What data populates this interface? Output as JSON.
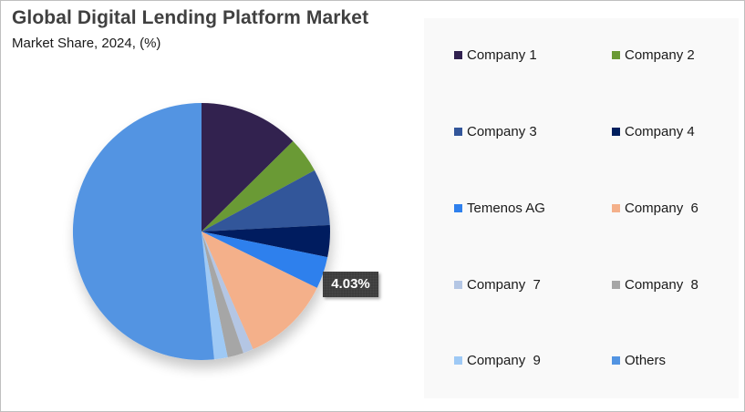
{
  "title": "Global Digital Lending Platform  Market",
  "subtitle": "Market Share, 2024, (%)",
  "tooltip": {
    "label": "4.03%",
    "target": "Temenos AG"
  },
  "legend": {
    "items": [
      {
        "label": "Company 1",
        "color": "#30214f"
      },
      {
        "label": "Company 2",
        "color": "#6a9a35"
      },
      {
        "label": "Company 3",
        "color": "#33569a"
      },
      {
        "label": "Company 4",
        "color": "#001f5e"
      },
      {
        "label": "Temenos AG",
        "color": "#2f80ed"
      },
      {
        "label": "Company  6",
        "color": "#f4b08a"
      },
      {
        "label": "Company  7",
        "color": "#b4c6e4"
      },
      {
        "label": "Company  8",
        "color": "#a6a6a6"
      },
      {
        "label": "Company  9",
        "color": "#9ec9f5"
      },
      {
        "label": "Others",
        "color": "#5294e2"
      }
    ]
  },
  "chart_data": {
    "type": "pie",
    "title": "Global Digital Lending Platform Market",
    "subtitle": "Market Share, 2024, (%)",
    "categories": [
      "Company 1",
      "Company 2",
      "Company 3",
      "Company 4",
      "Temenos AG",
      "Company 6",
      "Company 7",
      "Company 8",
      "Company 9",
      "Others"
    ],
    "values": [
      12.6,
      4.5,
      7.1,
      4.0,
      4.03,
      11.2,
      1.3,
      2.0,
      1.7,
      51.57
    ],
    "colors": [
      "#30214f",
      "#6a9a35",
      "#33569a",
      "#001f5e",
      "#2f80ed",
      "#f4b08a",
      "#b4c6e4",
      "#a6a6a6",
      "#9ec9f5",
      "#5294e2"
    ],
    "unit": "%",
    "start_angle_deg": 0,
    "direction": "clockwise",
    "annotations": [
      {
        "category": "Temenos AG",
        "text": "4.03%"
      }
    ],
    "legend_position": "right",
    "legend_columns": 2
  }
}
